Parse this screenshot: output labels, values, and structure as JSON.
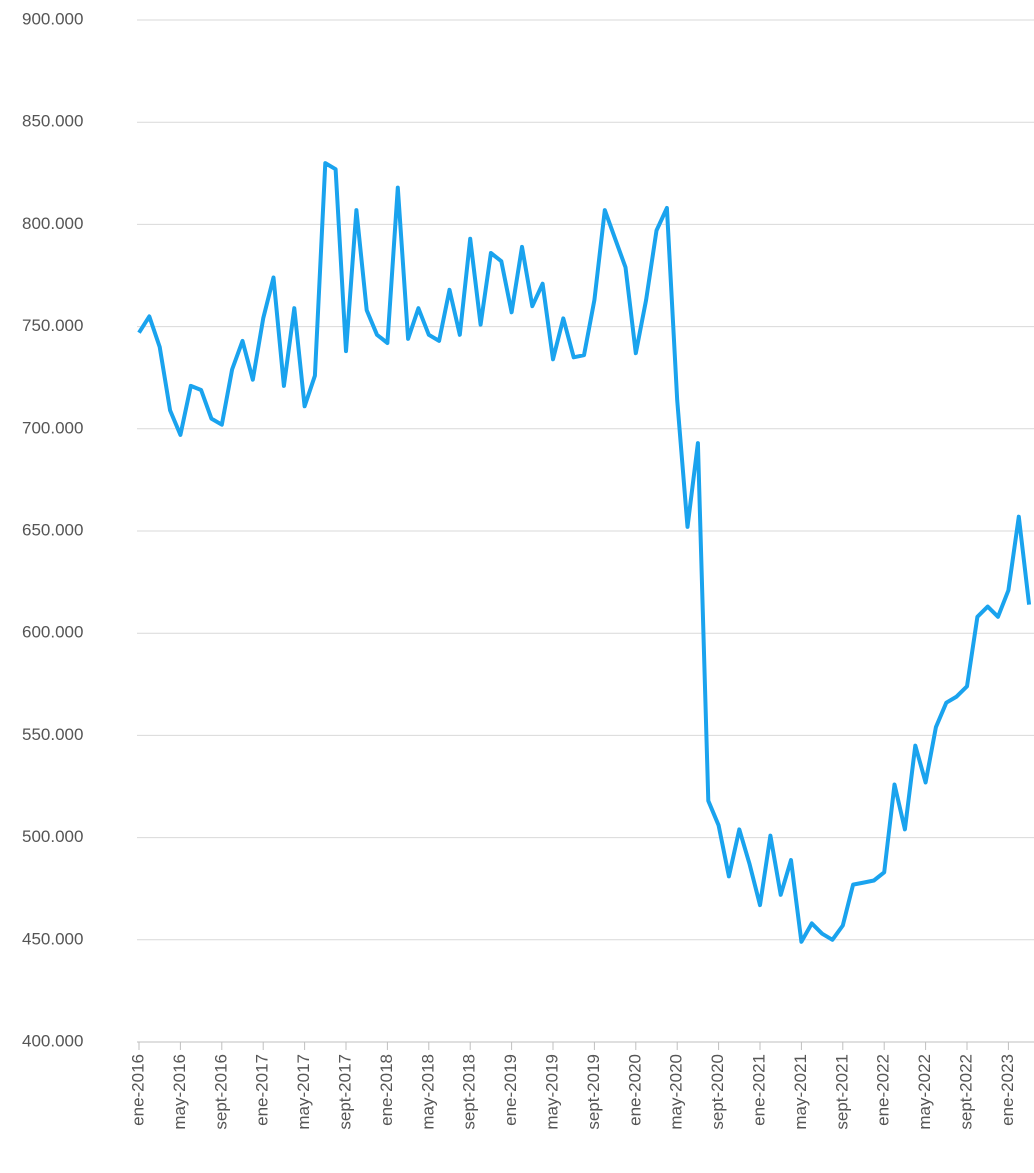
{
  "chart_data": {
    "type": "line",
    "color": "#1aa3ee",
    "grid": true,
    "ylim": [
      400000,
      900000
    ],
    "yticks": [
      {
        "value": 400000,
        "label": "400.000"
      },
      {
        "value": 450000,
        "label": "450.000"
      },
      {
        "value": 500000,
        "label": "500.000"
      },
      {
        "value": 550000,
        "label": "550.000"
      },
      {
        "value": 600000,
        "label": "600.000"
      },
      {
        "value": 650000,
        "label": "650.000"
      },
      {
        "value": 700000,
        "label": "700.000"
      },
      {
        "value": 750000,
        "label": "750.000"
      },
      {
        "value": 800000,
        "label": "800.000"
      },
      {
        "value": 850000,
        "label": "850.000"
      },
      {
        "value": 900000,
        "label": "900.000"
      }
    ],
    "categories": [
      "ene-2016",
      null,
      null,
      null,
      "may-2016",
      null,
      null,
      null,
      "sept-2016",
      null,
      null,
      null,
      "ene-2017",
      null,
      null,
      null,
      "may-2017",
      null,
      null,
      null,
      "sept-2017",
      null,
      null,
      null,
      "ene-2018",
      null,
      null,
      null,
      "may-2018",
      null,
      null,
      null,
      "sept-2018",
      null,
      null,
      null,
      "ene-2019",
      null,
      null,
      null,
      "may-2019",
      null,
      null,
      null,
      "sept-2019",
      null,
      null,
      null,
      "ene-2020",
      null,
      null,
      null,
      "may-2020",
      null,
      null,
      null,
      "sept-2020",
      null,
      null,
      null,
      "ene-2021",
      null,
      null,
      null,
      "may-2021",
      null,
      null,
      null,
      "sept-2021",
      null,
      null,
      null,
      "ene-2022",
      null,
      null,
      null,
      "may-2022",
      null,
      null,
      null,
      "sept-2022",
      null,
      null,
      null,
      "ene-2023",
      null,
      null
    ],
    "values": [
      747000,
      755000,
      740000,
      709000,
      697000,
      721000,
      719000,
      705000,
      702000,
      729000,
      743000,
      724000,
      754000,
      774000,
      721000,
      759000,
      711000,
      726000,
      830000,
      827000,
      738000,
      807000,
      758000,
      746000,
      742000,
      818000,
      744000,
      759000,
      746000,
      743000,
      768000,
      746000,
      793000,
      751000,
      786000,
      782000,
      757000,
      789000,
      760000,
      771000,
      734000,
      754000,
      735000,
      736000,
      763000,
      807000,
      793000,
      779000,
      737000,
      763000,
      797000,
      808000,
      714000,
      652000,
      693000,
      518000,
      506000,
      481000,
      504000,
      487000,
      467000,
      501000,
      472000,
      489000,
      449000,
      458000,
      453000,
      450000,
      457000,
      477000,
      478000,
      479000,
      483000,
      526000,
      504000,
      545000,
      527000,
      554000,
      566000,
      569000,
      574000,
      608000,
      613000,
      608000,
      621000,
      657000,
      614000
    ]
  }
}
